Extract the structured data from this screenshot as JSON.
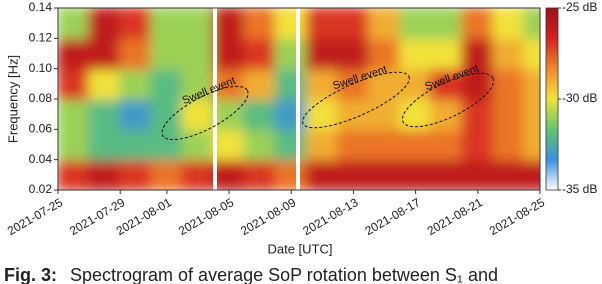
{
  "chart_data": {
    "type": "heatmap",
    "x_label": "Date [UTC]",
    "y_label": "Frequency [Hz]",
    "x": [
      "2021-07-26",
      "2021-07-28",
      "2021-07-30",
      "2021-08-01",
      "2021-08-03",
      "2021-08-05",
      "2021-08-07",
      "2021-08-09",
      "2021-08-11",
      "2021-08-13",
      "2021-08-15",
      "2021-08-17",
      "2021-08-19",
      "2021-08-21",
      "2021-08-23",
      "2021-08-25"
    ],
    "y": [
      0.03,
      0.05,
      0.07,
      0.09,
      0.11,
      0.13
    ],
    "values": [
      [
        -27,
        -26,
        -27,
        -28,
        -27,
        -26,
        -27,
        -28,
        -26,
        -26,
        -26,
        -26,
        -26,
        -26,
        -26,
        -26
      ],
      [
        -31,
        -32,
        -32,
        -32,
        -31,
        -30,
        -31,
        -32,
        -29,
        -28,
        -28,
        -28,
        -28,
        -27,
        -28,
        -29
      ],
      [
        -31,
        -32,
        -33,
        -32,
        -30,
        -31,
        -32,
        -33,
        -30,
        -29,
        -29,
        -30,
        -29,
        -27,
        -28,
        -29
      ],
      [
        -27,
        -30,
        -31,
        -32,
        -31,
        -28,
        -29,
        -32,
        -29,
        -28,
        -29,
        -29,
        -27,
        -26,
        -28,
        -29
      ],
      [
        -26,
        -26,
        -28,
        -31,
        -31,
        -26,
        -27,
        -31,
        -26,
        -26,
        -28,
        -30,
        -30,
        -26,
        -29,
        -30
      ],
      [
        -31,
        -26,
        -27,
        -31,
        -31,
        -26,
        -28,
        -30,
        -27,
        -27,
        -29,
        -31,
        -31,
        -28,
        -30,
        -31
      ]
    ],
    "xlim": [
      "2021-07-25",
      "2021-08-25"
    ],
    "xticks": [
      "2021-07-25",
      "2021-07-29",
      "2021-08-01",
      "2021-08-05",
      "2021-08-09",
      "2021-08-13",
      "2021-08-17",
      "2021-08-21",
      "2021-08-25"
    ],
    "ylim": [
      0.02,
      0.14
    ],
    "yticks": [
      0.02,
      0.04,
      0.06,
      0.08,
      {
        "value": 0.1,
        "label": "0.10"
      },
      0.12,
      0.14
    ],
    "clim": [
      -35,
      -25
    ],
    "cticks": [
      {
        "value": -35,
        "label": "-35 dB"
      },
      {
        "value": -30,
        "label": "-30 dB"
      },
      {
        "value": -25,
        "label": "-25 dB"
      }
    ],
    "colormap": [
      "#ffffff",
      "#3a8fe0",
      "#62c66a",
      "#f2e23a",
      "#f08a2a",
      "#d42020",
      "#a0101a"
    ],
    "annotations": [
      {
        "text": "Swell event"
      },
      {
        "text": "Swell event"
      },
      {
        "text": "Swell event"
      }
    ],
    "caption": {
      "label": "Fig. 3:",
      "text": "Spectrogram of average SoP rotation between S₁ and"
    }
  }
}
